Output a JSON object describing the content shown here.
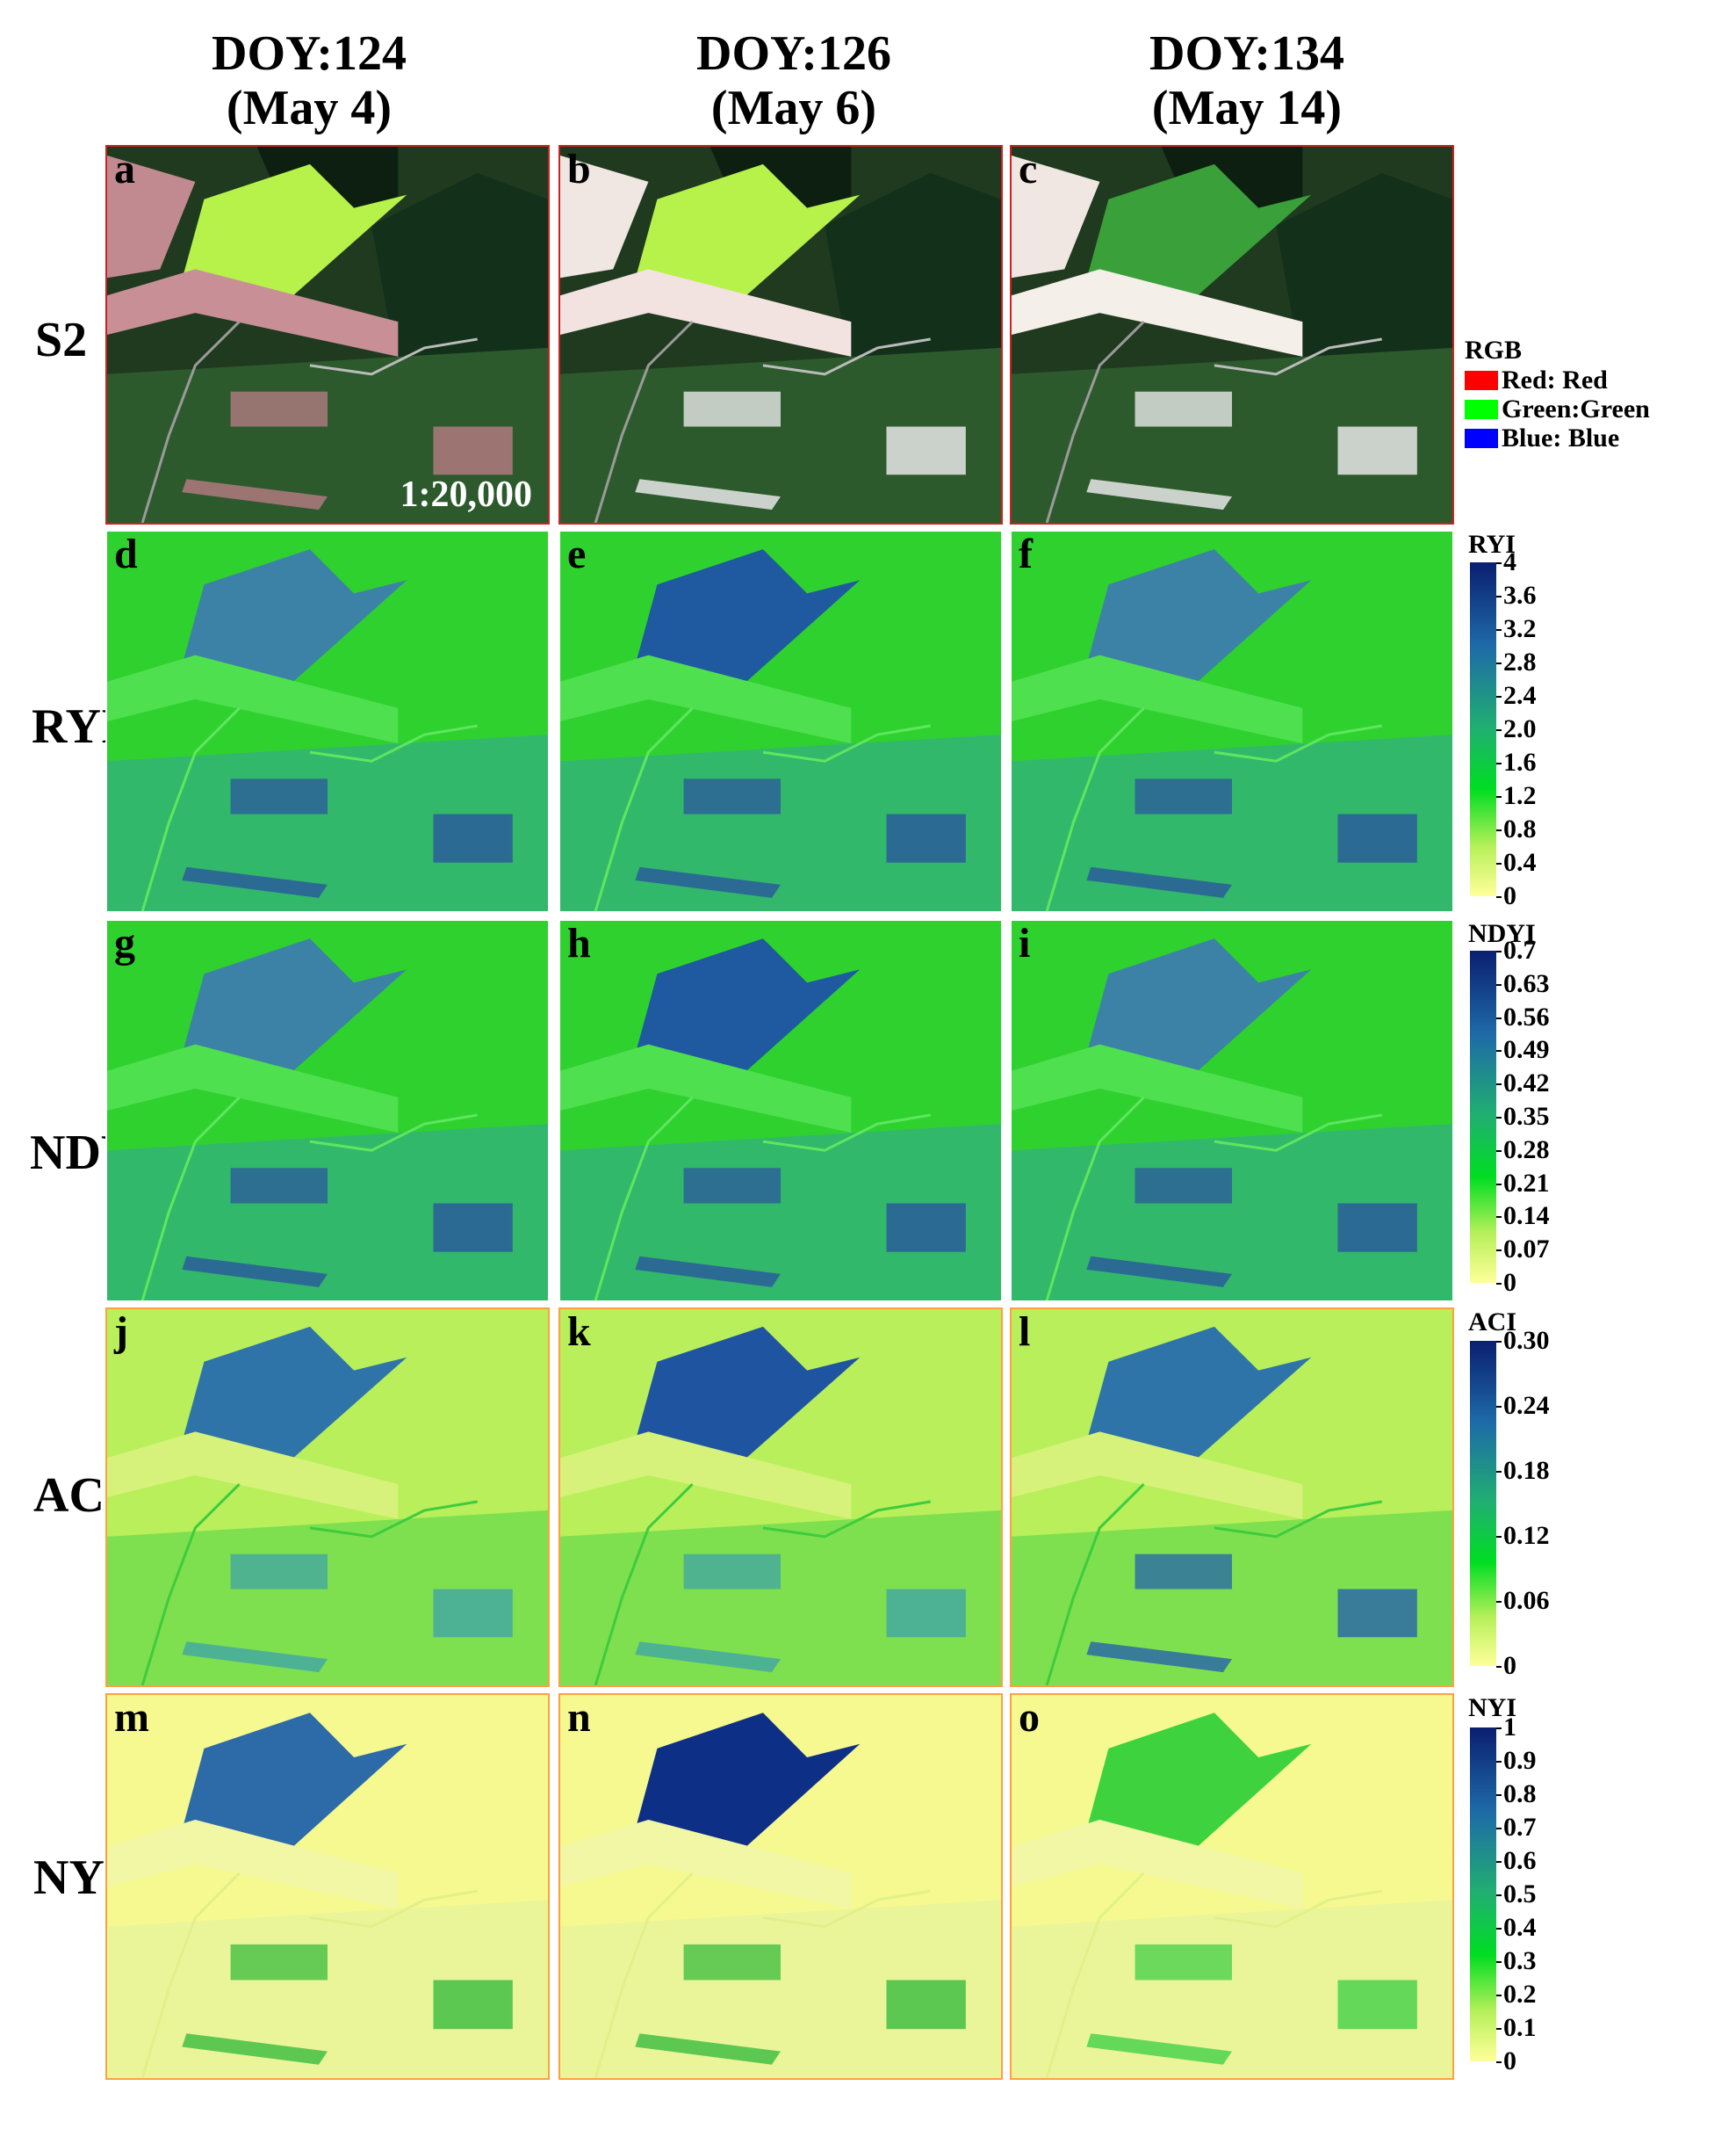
{
  "columns": [
    {
      "doy": "DOY:124",
      "date": "(May 4)"
    },
    {
      "doy": "DOY:126",
      "date": "(May 6)"
    },
    {
      "doy": "DOY:134",
      "date": "(May 14)"
    }
  ],
  "rows": [
    {
      "label": "S2",
      "panels": [
        "a",
        "b",
        "c"
      ]
    },
    {
      "label": "RYI",
      "panels": [
        "d",
        "e",
        "f"
      ]
    },
    {
      "label": "NDYI",
      "panels": [
        "g",
        "h",
        "i"
      ]
    },
    {
      "label": "ACI",
      "panels": [
        "j",
        "k",
        "l"
      ]
    },
    {
      "label": "NYI",
      "panels": [
        "m",
        "n",
        "o"
      ]
    }
  ],
  "scale_label": "1:20,000",
  "rgb_legend": {
    "title": "RGB",
    "items": [
      {
        "label": "Red: Red",
        "color": "#ff0000"
      },
      {
        "label": "Green:Green",
        "color": "#00ff00"
      },
      {
        "label": "Blue: Blue",
        "color": "#0000ff"
      }
    ]
  },
  "colorbars": [
    {
      "title": "RYI",
      "ticks": [
        "4",
        "3.6",
        "3.2",
        "2.8",
        "2.4",
        "2.0",
        "1.6",
        "1.2",
        "0.8",
        "0.4",
        "0"
      ]
    },
    {
      "title": "NDYI",
      "ticks": [
        "0.7",
        "0.63",
        "0.56",
        "0.49",
        "0.42",
        "0.35",
        "0.28",
        "0.21",
        "0.14",
        "0.07",
        "0"
      ]
    },
    {
      "title": "ACI",
      "ticks": [
        "0.30",
        "0.24",
        "0.18",
        "0.12",
        "0.06",
        "0"
      ]
    },
    {
      "title": "NYI",
      "ticks": [
        "1",
        "0.9",
        "0.8",
        "0.7",
        "0.6",
        "0.5",
        "0.4",
        "0.3",
        "0.2",
        "0.1",
        "0"
      ]
    }
  ],
  "colors": {
    "ramp_low": "#ffff99",
    "ramp_mid": "#00dd22",
    "ramp_high": "#0a1f70",
    "panel_border_red": "#cc2222",
    "panel_border_orange": "#ffa040"
  }
}
